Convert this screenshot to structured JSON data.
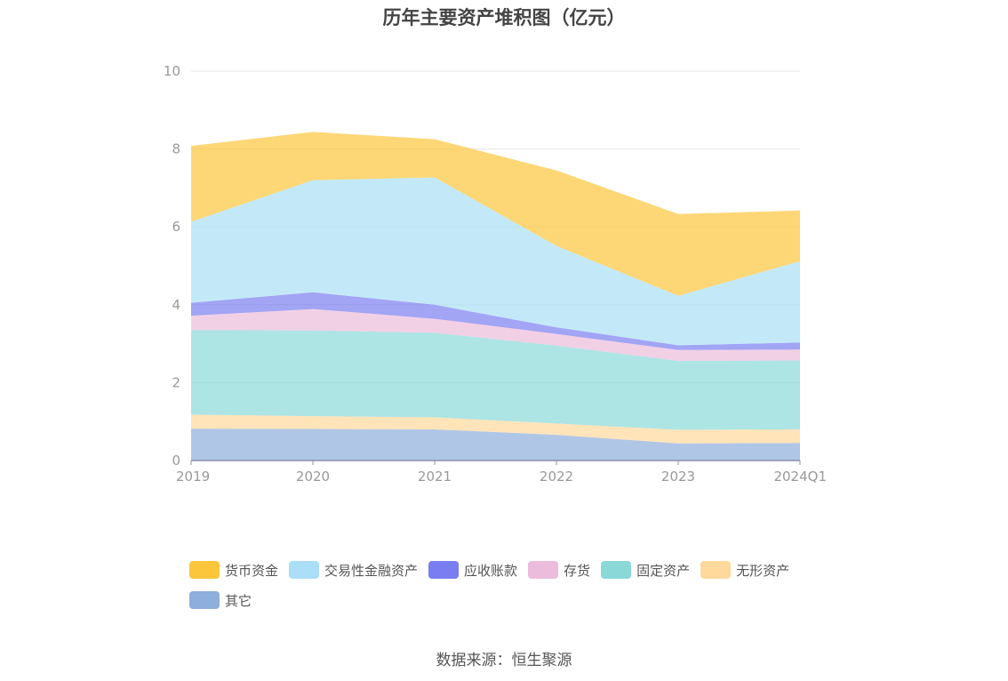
{
  "chart_data": {
    "type": "area",
    "stacked": true,
    "title": "历年主要资产堆积图（亿元）",
    "categories": [
      "2019",
      "2020",
      "2021",
      "2022",
      "2023",
      "2024Q1"
    ],
    "ylim": [
      0,
      10
    ],
    "yticks": [
      0,
      2,
      4,
      6,
      8,
      10
    ],
    "grid": true,
    "legend_position": "bottom",
    "series": [
      {
        "name": "其它",
        "color": "#8eaedc",
        "values": [
          0.82,
          0.81,
          0.8,
          0.66,
          0.44,
          0.45
        ]
      },
      {
        "name": "无形资产",
        "color": "#ffd89b",
        "values": [
          0.36,
          0.33,
          0.31,
          0.29,
          0.35,
          0.35
        ]
      },
      {
        "name": "固定资产",
        "color": "#8ad8d8",
        "values": [
          2.17,
          2.2,
          2.17,
          2.0,
          1.77,
          1.77
        ]
      },
      {
        "name": "存货",
        "color": "#ebbcdc",
        "values": [
          0.37,
          0.55,
          0.36,
          0.3,
          0.28,
          0.28
        ]
      },
      {
        "name": "应收账款",
        "color": "#7a7df0",
        "values": [
          0.33,
          0.43,
          0.36,
          0.17,
          0.12,
          0.18
        ]
      },
      {
        "name": "交易性金融资产",
        "color": "#aadff7",
        "values": [
          2.08,
          2.88,
          3.27,
          2.09,
          1.27,
          2.09
        ]
      },
      {
        "name": "货币资金",
        "color": "#fcc63c",
        "values": [
          1.95,
          1.24,
          0.98,
          1.94,
          2.1,
          1.3
        ]
      }
    ]
  },
  "legend_items": [
    {
      "label": "货币资金",
      "color": "#fcc63c"
    },
    {
      "label": "交易性金融资产",
      "color": "#aadff7"
    },
    {
      "label": "应收账款",
      "color": "#7a7df0"
    },
    {
      "label": "存货",
      "color": "#ebbcdc"
    },
    {
      "label": "固定资产",
      "color": "#8ad8d8"
    },
    {
      "label": "无形资产",
      "color": "#ffd89b"
    },
    {
      "label": "其它",
      "color": "#8eaedc"
    }
  ],
  "source": "数据来源：恒生聚源"
}
